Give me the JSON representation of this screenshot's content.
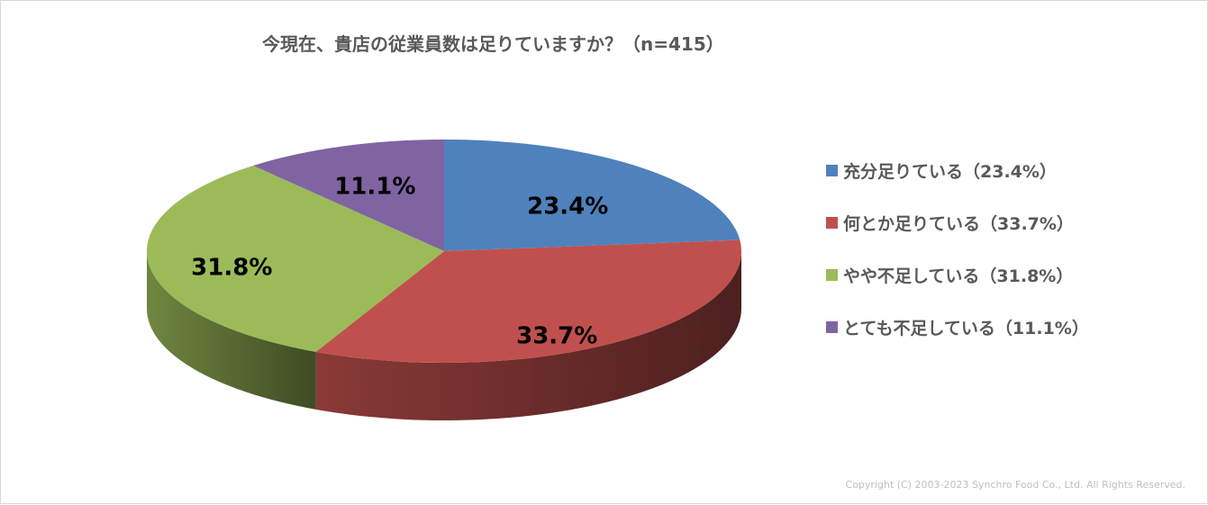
{
  "chart_data": {
    "type": "pie",
    "title": "今現在、貴店の従業員数は足りていますか？（n=415）",
    "categories": [
      "充分足りている",
      "何とか足りている",
      "やや不足している",
      "とても不足している"
    ],
    "values": [
      23.4,
      33.7,
      31.8,
      11.1
    ],
    "value_labels": [
      "23.4%",
      "33.7%",
      "31.8%",
      "11.1%"
    ],
    "legend_labels": [
      "充分足りている（23.4%）",
      "何とか足りている（33.7%）",
      "やや不足している（31.8%）",
      "とても不足している（11.1%）"
    ],
    "colors": [
      "#4f81bd",
      "#c0504d",
      "#9bbb59",
      "#8064a2"
    ],
    "legend_position": "right"
  },
  "footer": {
    "copyright": "Copyright (C) 2003-2023  Synchro Food Co., Ltd. All Rights Reserved."
  }
}
